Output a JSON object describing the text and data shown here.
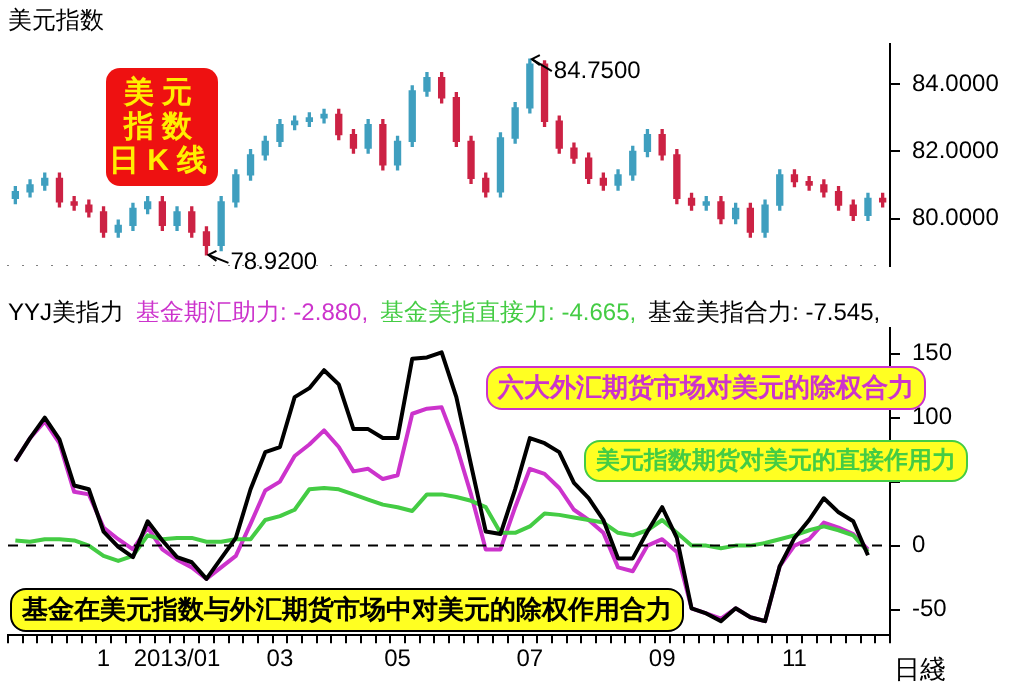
{
  "chart_data": [
    {
      "type": "candlestick",
      "title": "美元指数",
      "categories": [
        null,
        null,
        null,
        null,
        null,
        null,
        "1",
        null,
        null,
        null,
        null,
        "2013/01",
        null,
        null,
        null,
        null,
        null,
        null,
        "03",
        null,
        null,
        null,
        null,
        null,
        null,
        null,
        "05",
        null,
        null,
        null,
        null,
        null,
        null,
        null,
        null,
        "07",
        null,
        null,
        null,
        null,
        null,
        null,
        null,
        null,
        "09",
        null,
        null,
        null,
        null,
        null,
        null,
        null,
        null,
        "11",
        null,
        null,
        null,
        null,
        null,
        null
      ],
      "ohlc": [
        [
          80.6,
          80.95,
          80.45,
          80.8
        ],
        [
          80.8,
          81.15,
          80.65,
          81.0
        ],
        [
          81.0,
          81.35,
          80.85,
          81.2
        ],
        [
          81.2,
          81.35,
          80.35,
          80.5
        ],
        [
          80.5,
          80.65,
          80.25,
          80.4
        ],
        [
          80.4,
          80.55,
          80.05,
          80.2
        ],
        [
          80.2,
          80.35,
          79.45,
          79.6
        ],
        [
          79.6,
          79.95,
          79.45,
          79.8
        ],
        [
          79.8,
          80.45,
          79.65,
          80.3
        ],
        [
          80.3,
          80.65,
          80.15,
          80.5
        ],
        [
          80.5,
          80.65,
          79.65,
          79.8
        ],
        [
          79.8,
          80.35,
          79.65,
          80.2
        ],
        [
          80.2,
          80.35,
          79.45,
          79.6
        ],
        [
          79.6,
          79.75,
          78.92,
          79.2
        ],
        [
          79.2,
          80.65,
          79.05,
          80.5
        ],
        [
          80.5,
          81.45,
          80.35,
          81.3
        ],
        [
          81.3,
          82.05,
          81.15,
          81.9
        ],
        [
          81.9,
          82.45,
          81.75,
          82.3
        ],
        [
          82.3,
          82.95,
          82.15,
          82.8
        ],
        [
          82.8,
          83.05,
          82.65,
          82.9
        ],
        [
          82.9,
          83.15,
          82.75,
          83.0
        ],
        [
          83.0,
          83.25,
          82.85,
          83.1
        ],
        [
          83.1,
          83.25,
          82.35,
          82.5
        ],
        [
          82.5,
          82.65,
          81.95,
          82.1
        ],
        [
          82.1,
          82.95,
          81.95,
          82.8
        ],
        [
          82.8,
          82.95,
          81.45,
          81.6
        ],
        [
          81.6,
          82.45,
          81.45,
          82.3
        ],
        [
          82.3,
          83.95,
          82.15,
          83.8
        ],
        [
          83.8,
          84.35,
          83.65,
          84.2
        ],
        [
          84.2,
          84.35,
          83.45,
          83.6
        ],
        [
          83.6,
          83.75,
          82.15,
          82.3
        ],
        [
          82.3,
          82.45,
          81.05,
          81.2
        ],
        [
          81.2,
          81.35,
          80.65,
          80.8
        ],
        [
          80.8,
          82.55,
          80.65,
          82.4
        ],
        [
          82.4,
          83.45,
          82.25,
          83.3
        ],
        [
          83.3,
          84.75,
          83.15,
          84.6
        ],
        [
          84.6,
          84.7,
          82.75,
          82.9
        ],
        [
          82.9,
          83.05,
          81.95,
          82.1
        ],
        [
          82.1,
          82.25,
          81.65,
          81.8
        ],
        [
          81.8,
          81.95,
          81.05,
          81.2
        ],
        [
          81.2,
          81.35,
          80.85,
          81.0
        ],
        [
          81.0,
          81.45,
          80.85,
          81.3
        ],
        [
          81.3,
          82.15,
          81.15,
          82.0
        ],
        [
          82.0,
          82.65,
          81.85,
          82.5
        ],
        [
          82.5,
          82.65,
          81.75,
          81.9
        ],
        [
          81.9,
          82.05,
          80.45,
          80.6
        ],
        [
          80.6,
          80.75,
          80.25,
          80.4
        ],
        [
          80.4,
          80.65,
          80.25,
          80.5
        ],
        [
          80.5,
          80.65,
          79.85,
          80.0
        ],
        [
          80.0,
          80.45,
          79.85,
          80.3
        ],
        [
          80.3,
          80.45,
          79.45,
          79.6
        ],
        [
          79.6,
          80.55,
          79.45,
          80.4
        ],
        [
          80.4,
          81.45,
          80.25,
          81.3
        ],
        [
          81.3,
          81.45,
          80.95,
          81.1
        ],
        [
          81.1,
          81.25,
          80.85,
          81.0
        ],
        [
          81.0,
          81.15,
          80.65,
          80.8
        ],
        [
          80.8,
          80.95,
          80.25,
          80.4
        ],
        [
          80.4,
          80.55,
          79.95,
          80.1
        ],
        [
          80.1,
          80.75,
          79.95,
          80.6
        ],
        [
          80.6,
          80.75,
          80.35,
          80.5
        ]
      ],
      "ylim": [
        78.6,
        85.2
      ],
      "yticks": [
        {
          "value": 80,
          "label": "80.0000"
        },
        {
          "value": 82,
          "label": "82.0000"
        },
        {
          "value": 84,
          "label": "84.0000"
        }
      ],
      "tick_labels": "y",
      "legend": false,
      "grid": false,
      "annotations": [
        "美元指数日K线",
        "84.7500",
        "78.9200"
      ]
    },
    {
      "type": "line",
      "title": "YYJ美指力",
      "categories": [
        null,
        null,
        null,
        null,
        null,
        null,
        "1",
        null,
        null,
        null,
        null,
        "2013/01",
        null,
        null,
        null,
        null,
        null,
        null,
        "03",
        null,
        null,
        null,
        null,
        null,
        null,
        null,
        "05",
        null,
        null,
        null,
        null,
        null,
        null,
        null,
        null,
        "07",
        null,
        null,
        null,
        null,
        null,
        null,
        null,
        null,
        "09",
        null,
        null,
        null,
        null,
        null,
        null,
        null,
        null,
        "11",
        null,
        null,
        null,
        null,
        null,
        null
      ],
      "series": [
        {
          "name": "基金期汇助力",
          "color": "#cc33cc",
          "values": [
            66,
            84,
            97,
            80,
            42,
            40,
            14,
            5,
            -3,
            14,
            -3,
            -11,
            -17,
            -26,
            -17,
            -8,
            17,
            43,
            50,
            70,
            79,
            90,
            77,
            58,
            60,
            52,
            55,
            103,
            107,
            108,
            78,
            40,
            -3,
            -3,
            30,
            60,
            56,
            45,
            28,
            20,
            10,
            -17,
            -20,
            0,
            5,
            -5,
            -49,
            -53,
            -57,
            -49,
            -56,
            -59,
            -16,
            0,
            5,
            18,
            14,
            9,
            -2.88,
            null
          ]
        },
        {
          "name": "基金美指直接力",
          "color": "#44cc44",
          "values": [
            4,
            3,
            5,
            5,
            4,
            0,
            -8,
            -12,
            -8,
            8,
            5,
            6,
            6,
            3,
            3,
            5,
            5,
            20,
            23,
            28,
            44,
            45,
            44,
            40,
            36,
            32,
            30,
            27,
            40,
            40,
            38,
            35,
            30,
            10,
            10,
            15,
            25,
            24,
            22,
            20,
            18,
            10,
            8,
            12,
            20,
            10,
            0,
            0,
            -2,
            0,
            0,
            2,
            5,
            8,
            12,
            15,
            12,
            8,
            -4.665,
            null
          ]
        },
        {
          "name": "基金美指合力",
          "color": "#000000",
          "values": [
            66,
            84,
            100,
            83,
            47,
            44,
            11,
            -1,
            -9,
            19,
            4,
            -9,
            -13,
            -26,
            -10,
            6,
            44,
            73,
            77,
            116,
            123,
            137,
            126,
            91,
            91,
            84,
            84,
            146,
            147,
            151,
            116,
            63,
            11,
            9,
            44,
            84,
            80,
            73,
            49,
            37,
            20,
            -10,
            -10,
            11,
            30,
            6,
            -49,
            -53,
            -59,
            -49,
            -56,
            -59,
            -16,
            6,
            20,
            37,
            26,
            19,
            -7.545,
            null
          ]
        }
      ],
      "ylim": [
        -70,
        170
      ],
      "yticks": [
        -50,
        0,
        {
          "value": 50,
          "label": null
        },
        100,
        150
      ],
      "ref_lines": [
        {
          "axis": "y",
          "value": 0,
          "color": "#000000",
          "line_style": "dashed"
        }
      ],
      "legend": "top left",
      "grid": false,
      "marker": "none",
      "annotations": [
        "六大外汇期货市场对美元的除权合力",
        "美元指数期货对美元的直接作用力",
        "基金在美元指数与外汇期货市场中对美元的除权作用合力",
        "日綫",
        ": -2.880,",
        ": -4.665,",
        ": -7.545,"
      ]
    }
  ]
}
